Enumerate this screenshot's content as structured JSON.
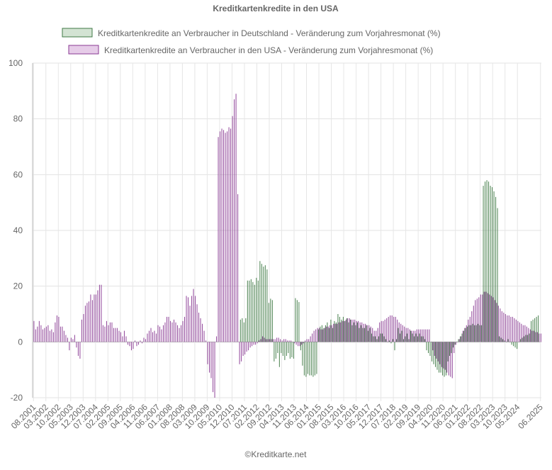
{
  "chart_data": {
    "type": "bar",
    "title": "Kreditkartenkredite in den USA",
    "footer": "©Kreditkarte.net",
    "ylim": [
      -20,
      100
    ],
    "yticks": [
      100,
      80,
      60,
      40,
      20,
      0,
      -20
    ],
    "grid": true,
    "legend_position": "top",
    "x_start": "08.2001",
    "x_end": "06.2025",
    "x_tick_labels": [
      "08.2001",
      "03.2002",
      "10.2002",
      "05.2003",
      "12.2003",
      "07.2004",
      "02.2005",
      "09.2005",
      "04.2006",
      "11.2006",
      "06.2007",
      "01.2008",
      "08.2008",
      "03.2009",
      "10.2009",
      "05.2010",
      "12.2010",
      "07.2011",
      "02.2012",
      "09.2012",
      "04.2013",
      "11.2013",
      "06.2014",
      "01.2015",
      "08.2015",
      "03.2016",
      "10.2016",
      "05.2017",
      "12.2017",
      "07.2018",
      "02.2019",
      "09.2019",
      "04.2020",
      "11.2020",
      "06.2021",
      "01.2022",
      "08.2022",
      "03.2023",
      "10.2023",
      "05.2024",
      "06.2025"
    ],
    "series": [
      {
        "name": "Kreditkartenkredite an Verbraucher in Deutschland - Veränderung zum Vorjahresmonat (%)",
        "color": "#3f7a45",
        "legend_fill": "#d3e3d3",
        "first_month": "05.2011",
        "values": [
          8,
          8.5,
          7,
          8.5,
          22,
          22,
          22.5,
          21.5,
          20.5,
          23,
          22,
          29,
          28,
          27,
          27.5,
          26,
          14,
          15.5,
          15,
          -7,
          -6,
          -4,
          -9,
          -4,
          -5,
          -6.5,
          -5,
          -4,
          -6,
          -5.5,
          -6,
          15.7,
          15,
          14.3,
          -3,
          -8.5,
          -12,
          -12.5,
          -11.5,
          -12,
          -12,
          -12.5,
          -12,
          -11.5,
          4.5,
          5.5,
          6,
          5,
          6,
          7,
          5,
          8,
          5,
          7.5,
          7,
          10,
          9,
          8,
          9,
          7.5,
          8.5,
          7,
          8,
          6,
          7,
          6,
          7,
          5,
          6,
          5,
          5,
          6,
          4,
          5,
          3,
          2,
          2,
          1,
          2,
          3,
          3,
          2,
          1,
          0,
          0.5,
          -0.5,
          1,
          -3,
          1,
          5,
          3,
          4,
          1,
          2,
          3,
          1,
          4,
          3,
          2,
          3,
          2,
          3,
          2,
          2,
          1,
          -3,
          -4,
          -5,
          -7,
          -8,
          -9,
          -10,
          -11,
          -11,
          -12,
          -12.5,
          -12,
          -7,
          -5,
          -4,
          -2,
          -1,
          0,
          1,
          2,
          3,
          4,
          5,
          5.5,
          6,
          6,
          6.5,
          6,
          6,
          6.5,
          6,
          6,
          56,
          57.5,
          58,
          57.5,
          56,
          55.5,
          54,
          52,
          48,
          2,
          1.5,
          1,
          0.5,
          0,
          1,
          0,
          -1,
          -1.5,
          -2,
          -2.5,
          0,
          1,
          1.5,
          2,
          2.5,
          2.5,
          3,
          7.5,
          8,
          8.5,
          9,
          9.5
        ]
      },
      {
        "name": "Kreditkartenkredite an Verbraucher in den USA - Veränderung zum Vorjahresmonat (%)",
        "color": "#8a3a93",
        "legend_fill": "#e6cce8",
        "first_month": "08.2001",
        "values": [
          7.5,
          4.5,
          5.5,
          7.5,
          6,
          4.5,
          5,
          5.5,
          6,
          4,
          4.5,
          3.5,
          7,
          9.5,
          9,
          5.5,
          5.5,
          4,
          2.5,
          1.5,
          -3,
          1.5,
          1,
          2.5,
          -2,
          -5,
          -6,
          8,
          10,
          13,
          14,
          14.5,
          17,
          15,
          17,
          17,
          18.5,
          20.5,
          20.5,
          6,
          5.5,
          7.5,
          6,
          7,
          7,
          5,
          5,
          5,
          4,
          3.5,
          2,
          4,
          2,
          -1,
          -1.5,
          -3,
          -2.5,
          0.5,
          -1.5,
          -1,
          0.5,
          -0.5,
          1.5,
          1,
          3,
          4,
          5,
          3.5,
          4,
          3,
          6,
          5.5,
          4.5,
          6,
          7,
          9,
          9,
          7.5,
          7,
          8,
          7,
          6,
          5,
          6,
          7.5,
          9,
          16.5,
          16,
          13,
          16.5,
          19,
          16.5,
          13.5,
          10.5,
          8.5,
          6.5,
          4,
          0.5,
          -8,
          -11,
          -13,
          -18,
          -20,
          2,
          73.5,
          75.5,
          76.5,
          76,
          75,
          75.5,
          77,
          76.5,
          81,
          87,
          89,
          53,
          -8,
          -7,
          -5,
          -4.5,
          -3.5,
          -3,
          -2,
          -1.5,
          -1,
          -1,
          -0.5,
          0.5,
          1,
          2,
          1.5,
          1,
          1,
          1,
          1,
          1,
          1,
          1.5,
          1.5,
          1,
          0.5,
          1,
          1,
          0.5,
          0.5,
          0.5,
          0,
          -0.5,
          -1,
          -1.5,
          -1.5,
          -1,
          -0.5,
          0.5,
          1,
          1,
          2,
          3,
          4,
          4.5,
          5,
          5,
          4.5,
          4.5,
          5,
          5.5,
          5.5,
          6,
          6,
          6.5,
          6.5,
          6.5,
          7,
          7,
          7.5,
          7.5,
          8,
          8.5,
          8.5,
          8,
          8,
          8,
          7.5,
          7.5,
          7,
          7,
          6.5,
          6.5,
          6,
          6,
          5.5,
          5,
          4,
          4,
          5,
          7,
          7.5,
          7.5,
          8,
          8.5,
          9,
          9.5,
          9.5,
          9,
          9,
          8,
          7,
          6.5,
          6,
          5.5,
          5,
          5,
          4.5,
          4,
          4,
          4,
          4.5,
          4.5,
          4.5,
          4.5,
          4.5,
          4.5,
          4.5,
          4.5,
          0,
          -3,
          -5,
          -6,
          -7,
          -8,
          -9,
          -9.5,
          -10,
          -11,
          -12,
          -12.5,
          -13,
          -4,
          -1,
          0,
          1,
          2,
          4,
          5,
          6,
          8,
          9,
          11,
          13,
          15,
          15.5,
          16,
          17,
          17,
          18,
          18,
          17.5,
          17,
          16.5,
          16,
          15,
          14,
          13,
          12,
          11,
          10.5,
          10,
          9.5,
          9.5,
          9,
          9,
          8.5,
          8,
          7.5,
          7,
          6.5,
          6,
          6,
          5.5,
          5,
          4.5,
          4,
          4,
          3.5,
          3.5,
          3,
          3
        ]
      }
    ]
  }
}
